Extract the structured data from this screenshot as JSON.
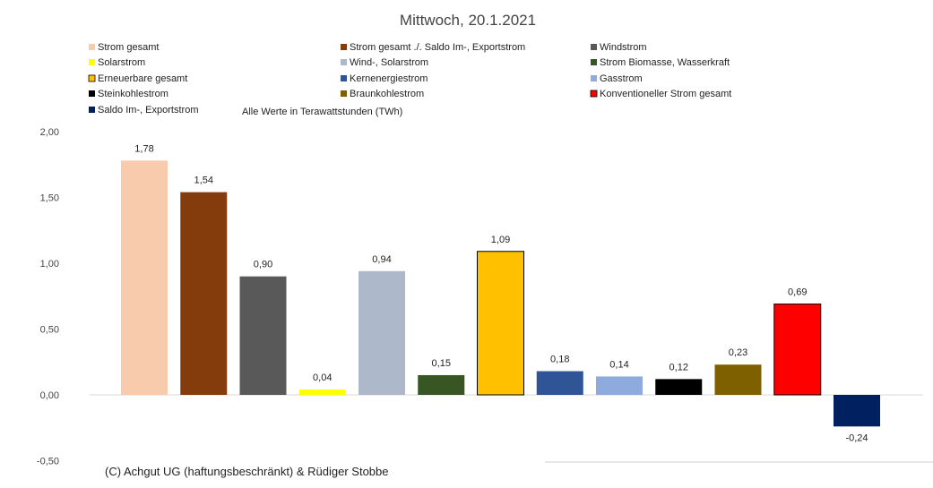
{
  "chart_data": {
    "type": "bar",
    "title": "Mittwoch,  20.1.2021",
    "note": "Alle Werte in Terawattstunden (TWh)",
    "copyright": "(C) Achgut UG (haftungsbeschränkt) & Rüdiger Stobbe",
    "ylim": [
      -0.5,
      2.0
    ],
    "yticks": [
      {
        "value": 2.0,
        "label": "2,00"
      },
      {
        "value": 1.5,
        "label": "1,50"
      },
      {
        "value": 1.0,
        "label": "1,00"
      },
      {
        "value": 0.5,
        "label": "0,50"
      },
      {
        "value": 0.0,
        "label": "0,00"
      },
      {
        "value": -0.5,
        "label": "-0,50"
      }
    ],
    "grid": false,
    "legend_position": "top",
    "series": [
      {
        "name": "Strom gesamt",
        "value": 1.78,
        "label": "1,78",
        "color": "#F8CBAD",
        "outlined": false
      },
      {
        "name": "Strom gesamt ./. Saldo Im-, Exportstrom",
        "value": 1.54,
        "label": "1,54",
        "color": "#843C0C",
        "outlined": false
      },
      {
        "name": "Windstrom",
        "value": 0.9,
        "label": "0,90",
        "color": "#595959",
        "outlined": false
      },
      {
        "name": "Solarstrom",
        "value": 0.04,
        "label": "0,04",
        "color": "#FFFF00",
        "outlined": false
      },
      {
        "name": "Wind-, Solarstrom",
        "value": 0.94,
        "label": "0,94",
        "color": "#ADB9CA",
        "outlined": false
      },
      {
        "name": "Strom Biomasse, Wasserkraft",
        "value": 0.15,
        "label": "0,15",
        "color": "#375623",
        "outlined": false
      },
      {
        "name": "Erneuerbare gesamt",
        "value": 1.09,
        "label": "1,09",
        "color": "#FFC000",
        "outlined": true
      },
      {
        "name": "Kernenergiestrom",
        "value": 0.18,
        "label": "0,18",
        "color": "#2F5597",
        "outlined": false
      },
      {
        "name": "Gasstrom",
        "value": 0.14,
        "label": "0,14",
        "color": "#8FAADC",
        "outlined": false
      },
      {
        "name": "Steinkohlestrom",
        "value": 0.12,
        "label": "0,12",
        "color": "#000000",
        "outlined": false
      },
      {
        "name": "Braunkohlestrom",
        "value": 0.23,
        "label": "0,23",
        "color": "#7F6000",
        "outlined": false
      },
      {
        "name": "Konventioneller Strom gesamt",
        "value": 0.69,
        "label": "0,69",
        "color": "#FF0000",
        "outlined": true
      },
      {
        "name": "Saldo Im-, Exportstrom",
        "value": -0.24,
        "label": "-0,24",
        "color": "#002060",
        "outlined": false
      }
    ]
  }
}
